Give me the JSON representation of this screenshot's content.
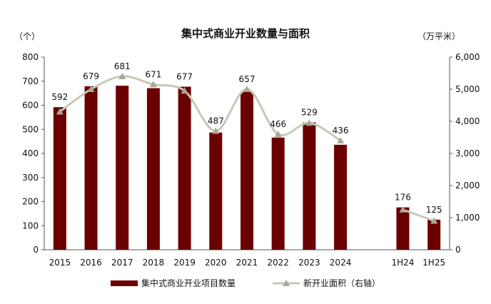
{
  "chart_data": {
    "type": "bar",
    "title": "集中式商业开业数量与面积",
    "categories": [
      "2015",
      "2016",
      "2017",
      "2018",
      "2019",
      "2020",
      "2021",
      "2022",
      "2023",
      "2024",
      "",
      "1H24",
      "1H25"
    ],
    "left_axis": {
      "unit": "（个）",
      "ylim": [
        0,
        800
      ],
      "ticks": [
        0,
        100,
        200,
        300,
        400,
        500,
        600,
        700,
        800
      ]
    },
    "right_axis": {
      "unit": "（万平米）",
      "ylim": [
        0,
        6000
      ],
      "ticks": [
        "0",
        "1,000",
        "2,000",
        "3,000",
        "4,000",
        "5,000",
        "6,000"
      ]
    },
    "series": [
      {
        "name": "集中式商业开业项目数量",
        "type": "bar",
        "axis": "left",
        "color": "#6b0000",
        "values": [
          592,
          679,
          681,
          671,
          677,
          487,
          657,
          466,
          529,
          436,
          null,
          176,
          125
        ]
      },
      {
        "name": "新开业面积（右轴）",
        "type": "line",
        "axis": "right",
        "color": "#c8c8b8",
        "values": [
          4300,
          5000,
          5400,
          5150,
          4950,
          3700,
          5000,
          3600,
          3950,
          3400,
          null,
          1250,
          900
        ]
      }
    ],
    "data_labels": [
      "592",
      "679",
      "681",
      "671",
      "677",
      "487",
      "657",
      "466",
      "529",
      "436",
      "",
      "176",
      "125"
    ],
    "grid": false,
    "legend_position": "bottom"
  }
}
